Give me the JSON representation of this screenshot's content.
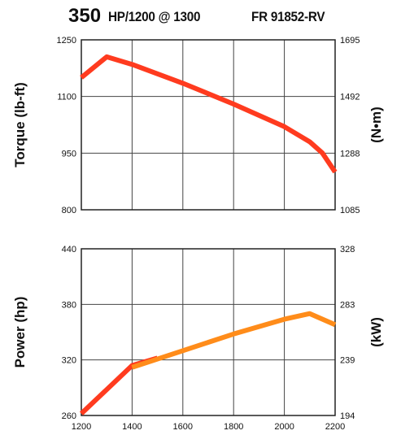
{
  "header": {
    "hp": "350",
    "rating": "HP/1200 @ 1300",
    "model": "FR 91852-RV"
  },
  "chart_data": [
    {
      "type": "line",
      "name": "torque",
      "ylabel": "Torque (lb-ft)",
      "ylabel_right": "(N•m)",
      "xlim": [
        1200,
        2200
      ],
      "ylim": [
        800,
        1250
      ],
      "yticks": [
        "800",
        "950",
        "1100",
        "1250"
      ],
      "yticks_right": [
        "1085",
        "1288",
        "1492",
        "1695"
      ],
      "grid": true,
      "series": [
        {
          "color": "#ff3b1f",
          "x": [
            1200,
            1300,
            1400,
            1600,
            1800,
            2000,
            2100,
            2150,
            2200
          ],
          "y": [
            1150,
            1205,
            1185,
            1135,
            1080,
            1020,
            980,
            950,
            900
          ]
        }
      ]
    },
    {
      "type": "line",
      "name": "power",
      "ylabel": "Power (hp)",
      "ylabel_right": "(kW)",
      "xlabel": "",
      "xlim": [
        1200,
        2200
      ],
      "ylim": [
        260,
        440
      ],
      "xticks": [
        "1200",
        "1400",
        "1600",
        "1800",
        "2000",
        "2200"
      ],
      "yticks": [
        "260",
        "320",
        "380",
        "440"
      ],
      "yticks_right": [
        "194",
        "239",
        "283",
        "328"
      ],
      "grid": true,
      "series": [
        {
          "color": "#ff3b1f",
          "x": [
            1200,
            1400,
            1500
          ],
          "y": [
            262,
            314,
            322
          ]
        },
        {
          "color": "#ff8c1a",
          "x": [
            1400,
            1600,
            1800,
            2000,
            2100,
            2200
          ],
          "y": [
            312,
            330,
            348,
            364,
            370,
            358
          ]
        }
      ]
    }
  ]
}
